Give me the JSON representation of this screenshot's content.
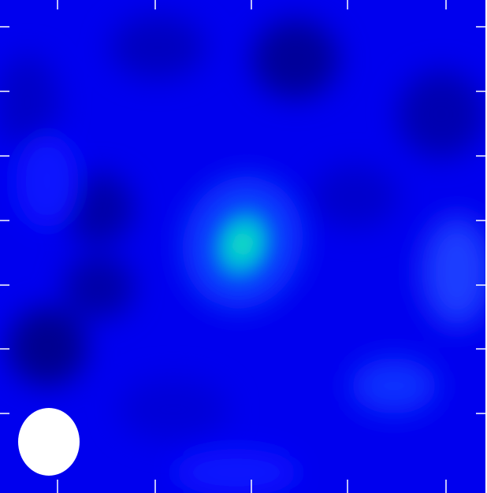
{
  "image": {
    "kind": "radio-continuum-intensity-map",
    "colormap": [
      "#000066",
      "#0000cc",
      "#0000ff",
      "#0a3aff",
      "#00c8d8",
      "#14e0b8"
    ],
    "background_color": "#0000ee",
    "tick_color": "#ffffff",
    "axes_labeled": false,
    "beam_ellipse_color": "#ffffff",
    "source_count": 1
  }
}
